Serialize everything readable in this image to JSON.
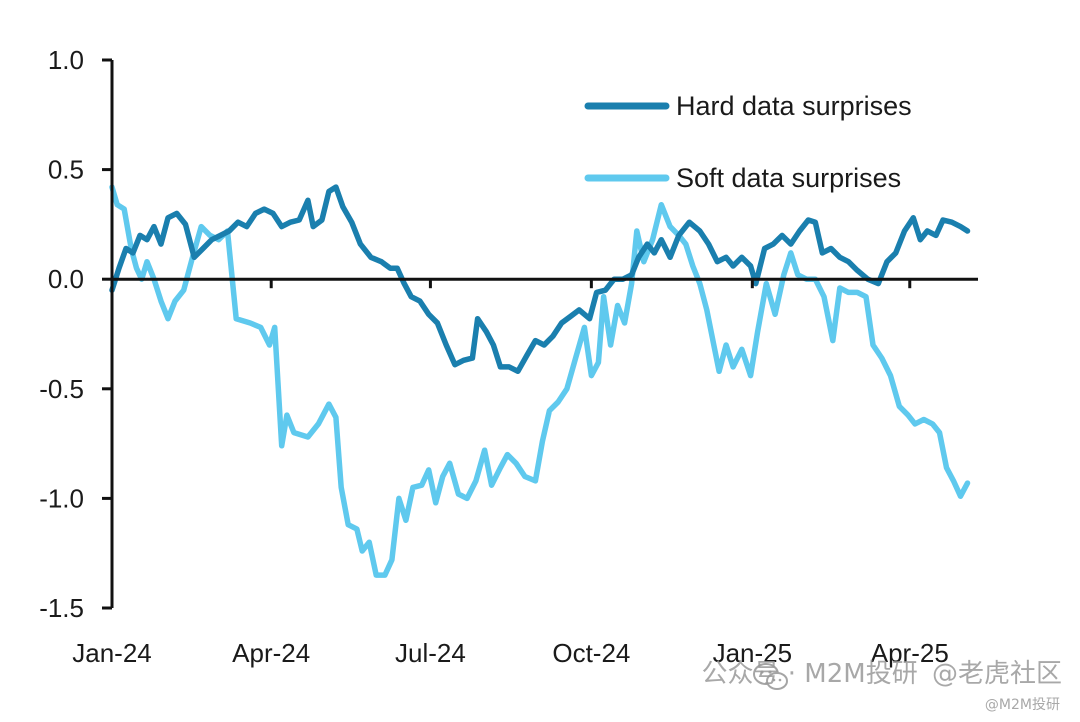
{
  "chart_data": {
    "type": "line",
    "title": "",
    "xlabel": "",
    "ylabel": "",
    "ylim": [
      -1.5,
      1.0
    ],
    "xlim": [
      "2024-01-01",
      "2025-05-10"
    ],
    "yticks": [
      1.0,
      0.5,
      0.0,
      -0.5,
      -1.0,
      -1.5
    ],
    "ytick_labels": [
      "1.0",
      "0.5",
      "0.0",
      "-0.5",
      "-1.0",
      "-1.5"
    ],
    "xticks": [
      "2024-01-01",
      "2024-04-01",
      "2024-07-01",
      "2024-10-01",
      "2025-01-01",
      "2025-04-01"
    ],
    "xtick_labels": [
      "Jan-24",
      "Apr-24",
      "Jul-24",
      "Oct-24",
      "Jan-25",
      "Apr-25"
    ],
    "grid": false,
    "legend_position": "top-right",
    "series": [
      {
        "name": "Hard data surprises",
        "color": "#1a7fae",
        "points": [
          [
            "2024-01-01",
            -0.05
          ],
          [
            "2024-01-05",
            0.05
          ],
          [
            "2024-01-09",
            0.14
          ],
          [
            "2024-01-13",
            0.12
          ],
          [
            "2024-01-17",
            0.2
          ],
          [
            "2024-01-21",
            0.18
          ],
          [
            "2024-01-25",
            0.24
          ],
          [
            "2024-01-29",
            0.16
          ],
          [
            "2024-02-02",
            0.28
          ],
          [
            "2024-02-07",
            0.3
          ],
          [
            "2024-02-12",
            0.25
          ],
          [
            "2024-02-17",
            0.1
          ],
          [
            "2024-02-22",
            0.14
          ],
          [
            "2024-02-27",
            0.18
          ],
          [
            "2024-03-03",
            0.2
          ],
          [
            "2024-03-08",
            0.22
          ],
          [
            "2024-03-13",
            0.26
          ],
          [
            "2024-03-18",
            0.24
          ],
          [
            "2024-03-23",
            0.3
          ],
          [
            "2024-03-28",
            0.32
          ],
          [
            "2024-04-02",
            0.3
          ],
          [
            "2024-04-07",
            0.24
          ],
          [
            "2024-04-12",
            0.26
          ],
          [
            "2024-04-17",
            0.27
          ],
          [
            "2024-04-22",
            0.36
          ],
          [
            "2024-04-25",
            0.24
          ],
          [
            "2024-04-30",
            0.27
          ],
          [
            "2024-05-04",
            0.4
          ],
          [
            "2024-05-08",
            0.42
          ],
          [
            "2024-05-12",
            0.33
          ],
          [
            "2024-05-17",
            0.26
          ],
          [
            "2024-05-22",
            0.16
          ],
          [
            "2024-05-28",
            0.1
          ],
          [
            "2024-06-03",
            0.08
          ],
          [
            "2024-06-08",
            0.05
          ],
          [
            "2024-06-12",
            0.05
          ],
          [
            "2024-06-16",
            -0.02
          ],
          [
            "2024-06-20",
            -0.08
          ],
          [
            "2024-06-25",
            -0.1
          ],
          [
            "2024-06-30",
            -0.16
          ],
          [
            "2024-07-05",
            -0.2
          ],
          [
            "2024-07-10",
            -0.3
          ],
          [
            "2024-07-15",
            -0.39
          ],
          [
            "2024-07-20",
            -0.37
          ],
          [
            "2024-07-25",
            -0.36
          ],
          [
            "2024-07-28",
            -0.18
          ],
          [
            "2024-08-02",
            -0.24
          ],
          [
            "2024-08-06",
            -0.3
          ],
          [
            "2024-08-10",
            -0.4
          ],
          [
            "2024-08-15",
            -0.4
          ],
          [
            "2024-08-20",
            -0.42
          ],
          [
            "2024-08-25",
            -0.35
          ],
          [
            "2024-08-30",
            -0.28
          ],
          [
            "2024-09-04",
            -0.3
          ],
          [
            "2024-09-09",
            -0.26
          ],
          [
            "2024-09-14",
            -0.2
          ],
          [
            "2024-09-19",
            -0.17
          ],
          [
            "2024-09-24",
            -0.14
          ],
          [
            "2024-09-30",
            -0.18
          ],
          [
            "2024-10-04",
            -0.06
          ],
          [
            "2024-10-09",
            -0.05
          ],
          [
            "2024-10-14",
            0.0
          ],
          [
            "2024-10-19",
            0.0
          ],
          [
            "2024-10-24",
            0.02
          ],
          [
            "2024-10-28",
            0.1
          ],
          [
            "2024-11-02",
            0.16
          ],
          [
            "2024-11-06",
            0.12
          ],
          [
            "2024-11-10",
            0.18
          ],
          [
            "2024-11-15",
            0.1
          ],
          [
            "2024-11-20",
            0.2
          ],
          [
            "2024-11-26",
            0.26
          ],
          [
            "2024-12-02",
            0.22
          ],
          [
            "2024-12-07",
            0.16
          ],
          [
            "2024-12-12",
            0.08
          ],
          [
            "2024-12-17",
            0.1
          ],
          [
            "2024-12-21",
            0.06
          ],
          [
            "2024-12-26",
            0.1
          ],
          [
            "2024-12-31",
            0.06
          ],
          [
            "2025-01-03",
            -0.02
          ],
          [
            "2025-01-08",
            0.14
          ],
          [
            "2025-01-13",
            0.16
          ],
          [
            "2025-01-18",
            0.2
          ],
          [
            "2025-01-23",
            0.16
          ],
          [
            "2025-01-28",
            0.22
          ],
          [
            "2025-02-02",
            0.27
          ],
          [
            "2025-02-06",
            0.26
          ],
          [
            "2025-02-10",
            0.12
          ],
          [
            "2025-02-15",
            0.14
          ],
          [
            "2025-02-20",
            0.1
          ],
          [
            "2025-02-25",
            0.08
          ],
          [
            "2025-03-02",
            0.04
          ],
          [
            "2025-03-08",
            0.0
          ],
          [
            "2025-03-14",
            -0.02
          ],
          [
            "2025-03-19",
            0.08
          ],
          [
            "2025-03-24",
            0.12
          ],
          [
            "2025-03-29",
            0.22
          ],
          [
            "2025-04-03",
            0.28
          ],
          [
            "2025-04-07",
            0.18
          ],
          [
            "2025-04-11",
            0.22
          ],
          [
            "2025-04-16",
            0.2
          ],
          [
            "2025-04-20",
            0.27
          ],
          [
            "2025-04-25",
            0.26
          ],
          [
            "2025-04-30",
            0.24
          ],
          [
            "2025-05-04",
            0.22
          ]
        ]
      },
      {
        "name": "Soft data surprises",
        "color": "#5fc9ee",
        "points": [
          [
            "2024-01-01",
            0.42
          ],
          [
            "2024-01-04",
            0.34
          ],
          [
            "2024-01-08",
            0.32
          ],
          [
            "2024-01-12",
            0.14
          ],
          [
            "2024-01-15",
            0.05
          ],
          [
            "2024-01-18",
            0.0
          ],
          [
            "2024-01-21",
            0.08
          ],
          [
            "2024-01-25",
            0.0
          ],
          [
            "2024-01-29",
            -0.1
          ],
          [
            "2024-02-02",
            -0.18
          ],
          [
            "2024-02-06",
            -0.1
          ],
          [
            "2024-02-11",
            -0.05
          ],
          [
            "2024-02-16",
            0.1
          ],
          [
            "2024-02-21",
            0.24
          ],
          [
            "2024-02-26",
            0.2
          ],
          [
            "2024-03-02",
            0.18
          ],
          [
            "2024-03-07",
            0.22
          ],
          [
            "2024-03-12",
            -0.18
          ],
          [
            "2024-03-20",
            -0.2
          ],
          [
            "2024-03-26",
            -0.22
          ],
          [
            "2024-03-31",
            -0.3
          ],
          [
            "2024-04-03",
            -0.22
          ],
          [
            "2024-04-07",
            -0.76
          ],
          [
            "2024-04-10",
            -0.62
          ],
          [
            "2024-04-14",
            -0.7
          ],
          [
            "2024-04-22",
            -0.72
          ],
          [
            "2024-04-28",
            -0.66
          ],
          [
            "2024-05-04",
            -0.57
          ],
          [
            "2024-05-08",
            -0.63
          ],
          [
            "2024-05-11",
            -0.95
          ],
          [
            "2024-05-15",
            -1.12
          ],
          [
            "2024-05-20",
            -1.14
          ],
          [
            "2024-05-23",
            -1.24
          ],
          [
            "2024-05-27",
            -1.2
          ],
          [
            "2024-05-31",
            -1.35
          ],
          [
            "2024-06-05",
            -1.35
          ],
          [
            "2024-06-09",
            -1.28
          ],
          [
            "2024-06-13",
            -1.0
          ],
          [
            "2024-06-17",
            -1.1
          ],
          [
            "2024-06-21",
            -0.95
          ],
          [
            "2024-06-26",
            -0.94
          ],
          [
            "2024-06-30",
            -0.87
          ],
          [
            "2024-07-04",
            -1.02
          ],
          [
            "2024-07-08",
            -0.9
          ],
          [
            "2024-07-12",
            -0.84
          ],
          [
            "2024-07-17",
            -0.98
          ],
          [
            "2024-07-22",
            -1.0
          ],
          [
            "2024-07-27",
            -0.92
          ],
          [
            "2024-08-01",
            -0.78
          ],
          [
            "2024-08-05",
            -0.94
          ],
          [
            "2024-08-10",
            -0.86
          ],
          [
            "2024-08-14",
            -0.8
          ],
          [
            "2024-08-19",
            -0.84
          ],
          [
            "2024-08-24",
            -0.9
          ],
          [
            "2024-08-30",
            -0.92
          ],
          [
            "2024-09-03",
            -0.74
          ],
          [
            "2024-09-07",
            -0.6
          ],
          [
            "2024-09-12",
            -0.56
          ],
          [
            "2024-09-17",
            -0.5
          ],
          [
            "2024-09-22",
            -0.36
          ],
          [
            "2024-09-27",
            -0.22
          ],
          [
            "2024-10-01",
            -0.44
          ],
          [
            "2024-10-05",
            -0.38
          ],
          [
            "2024-10-08",
            -0.08
          ],
          [
            "2024-10-12",
            -0.3
          ],
          [
            "2024-10-16",
            -0.12
          ],
          [
            "2024-10-20",
            -0.2
          ],
          [
            "2024-10-24",
            -0.02
          ],
          [
            "2024-10-27",
            0.22
          ],
          [
            "2024-10-31",
            0.08
          ],
          [
            "2024-11-05",
            0.18
          ],
          [
            "2024-11-10",
            0.34
          ],
          [
            "2024-11-15",
            0.24
          ],
          [
            "2024-11-20",
            0.2
          ],
          [
            "2024-11-24",
            0.16
          ],
          [
            "2024-11-28",
            0.06
          ],
          [
            "2024-12-02",
            -0.02
          ],
          [
            "2024-12-06",
            -0.14
          ],
          [
            "2024-12-10",
            -0.3
          ],
          [
            "2024-12-13",
            -0.42
          ],
          [
            "2024-12-17",
            -0.3
          ],
          [
            "2024-12-21",
            -0.4
          ],
          [
            "2024-12-26",
            -0.32
          ],
          [
            "2024-12-31",
            -0.44
          ],
          [
            "2025-01-04",
            -0.24
          ],
          [
            "2025-01-09",
            -0.02
          ],
          [
            "2025-01-14",
            -0.16
          ],
          [
            "2025-01-19",
            0.02
          ],
          [
            "2025-01-23",
            0.12
          ],
          [
            "2025-01-27",
            0.02
          ],
          [
            "2025-02-01",
            0.0
          ],
          [
            "2025-02-06",
            0.0
          ],
          [
            "2025-02-11",
            -0.08
          ],
          [
            "2025-02-16",
            -0.28
          ],
          [
            "2025-02-20",
            -0.04
          ],
          [
            "2025-02-25",
            -0.06
          ],
          [
            "2025-03-02",
            -0.06
          ],
          [
            "2025-03-07",
            -0.08
          ],
          [
            "2025-03-11",
            -0.3
          ],
          [
            "2025-03-16",
            -0.36
          ],
          [
            "2025-03-21",
            -0.44
          ],
          [
            "2025-03-26",
            -0.58
          ],
          [
            "2025-03-31",
            -0.62
          ],
          [
            "2025-04-04",
            -0.66
          ],
          [
            "2025-04-09",
            -0.64
          ],
          [
            "2025-04-14",
            -0.66
          ],
          [
            "2025-04-18",
            -0.7
          ],
          [
            "2025-04-22",
            -0.86
          ],
          [
            "2025-04-26",
            -0.92
          ],
          [
            "2025-04-30",
            -0.99
          ],
          [
            "2025-05-04",
            -0.93
          ]
        ]
      }
    ]
  },
  "watermark": {
    "main_text": "公众号 · M2M投研",
    "overlay_text": "@老虎社区",
    "sub_text": "@M2M投研",
    "icon": "wechat-icon"
  }
}
